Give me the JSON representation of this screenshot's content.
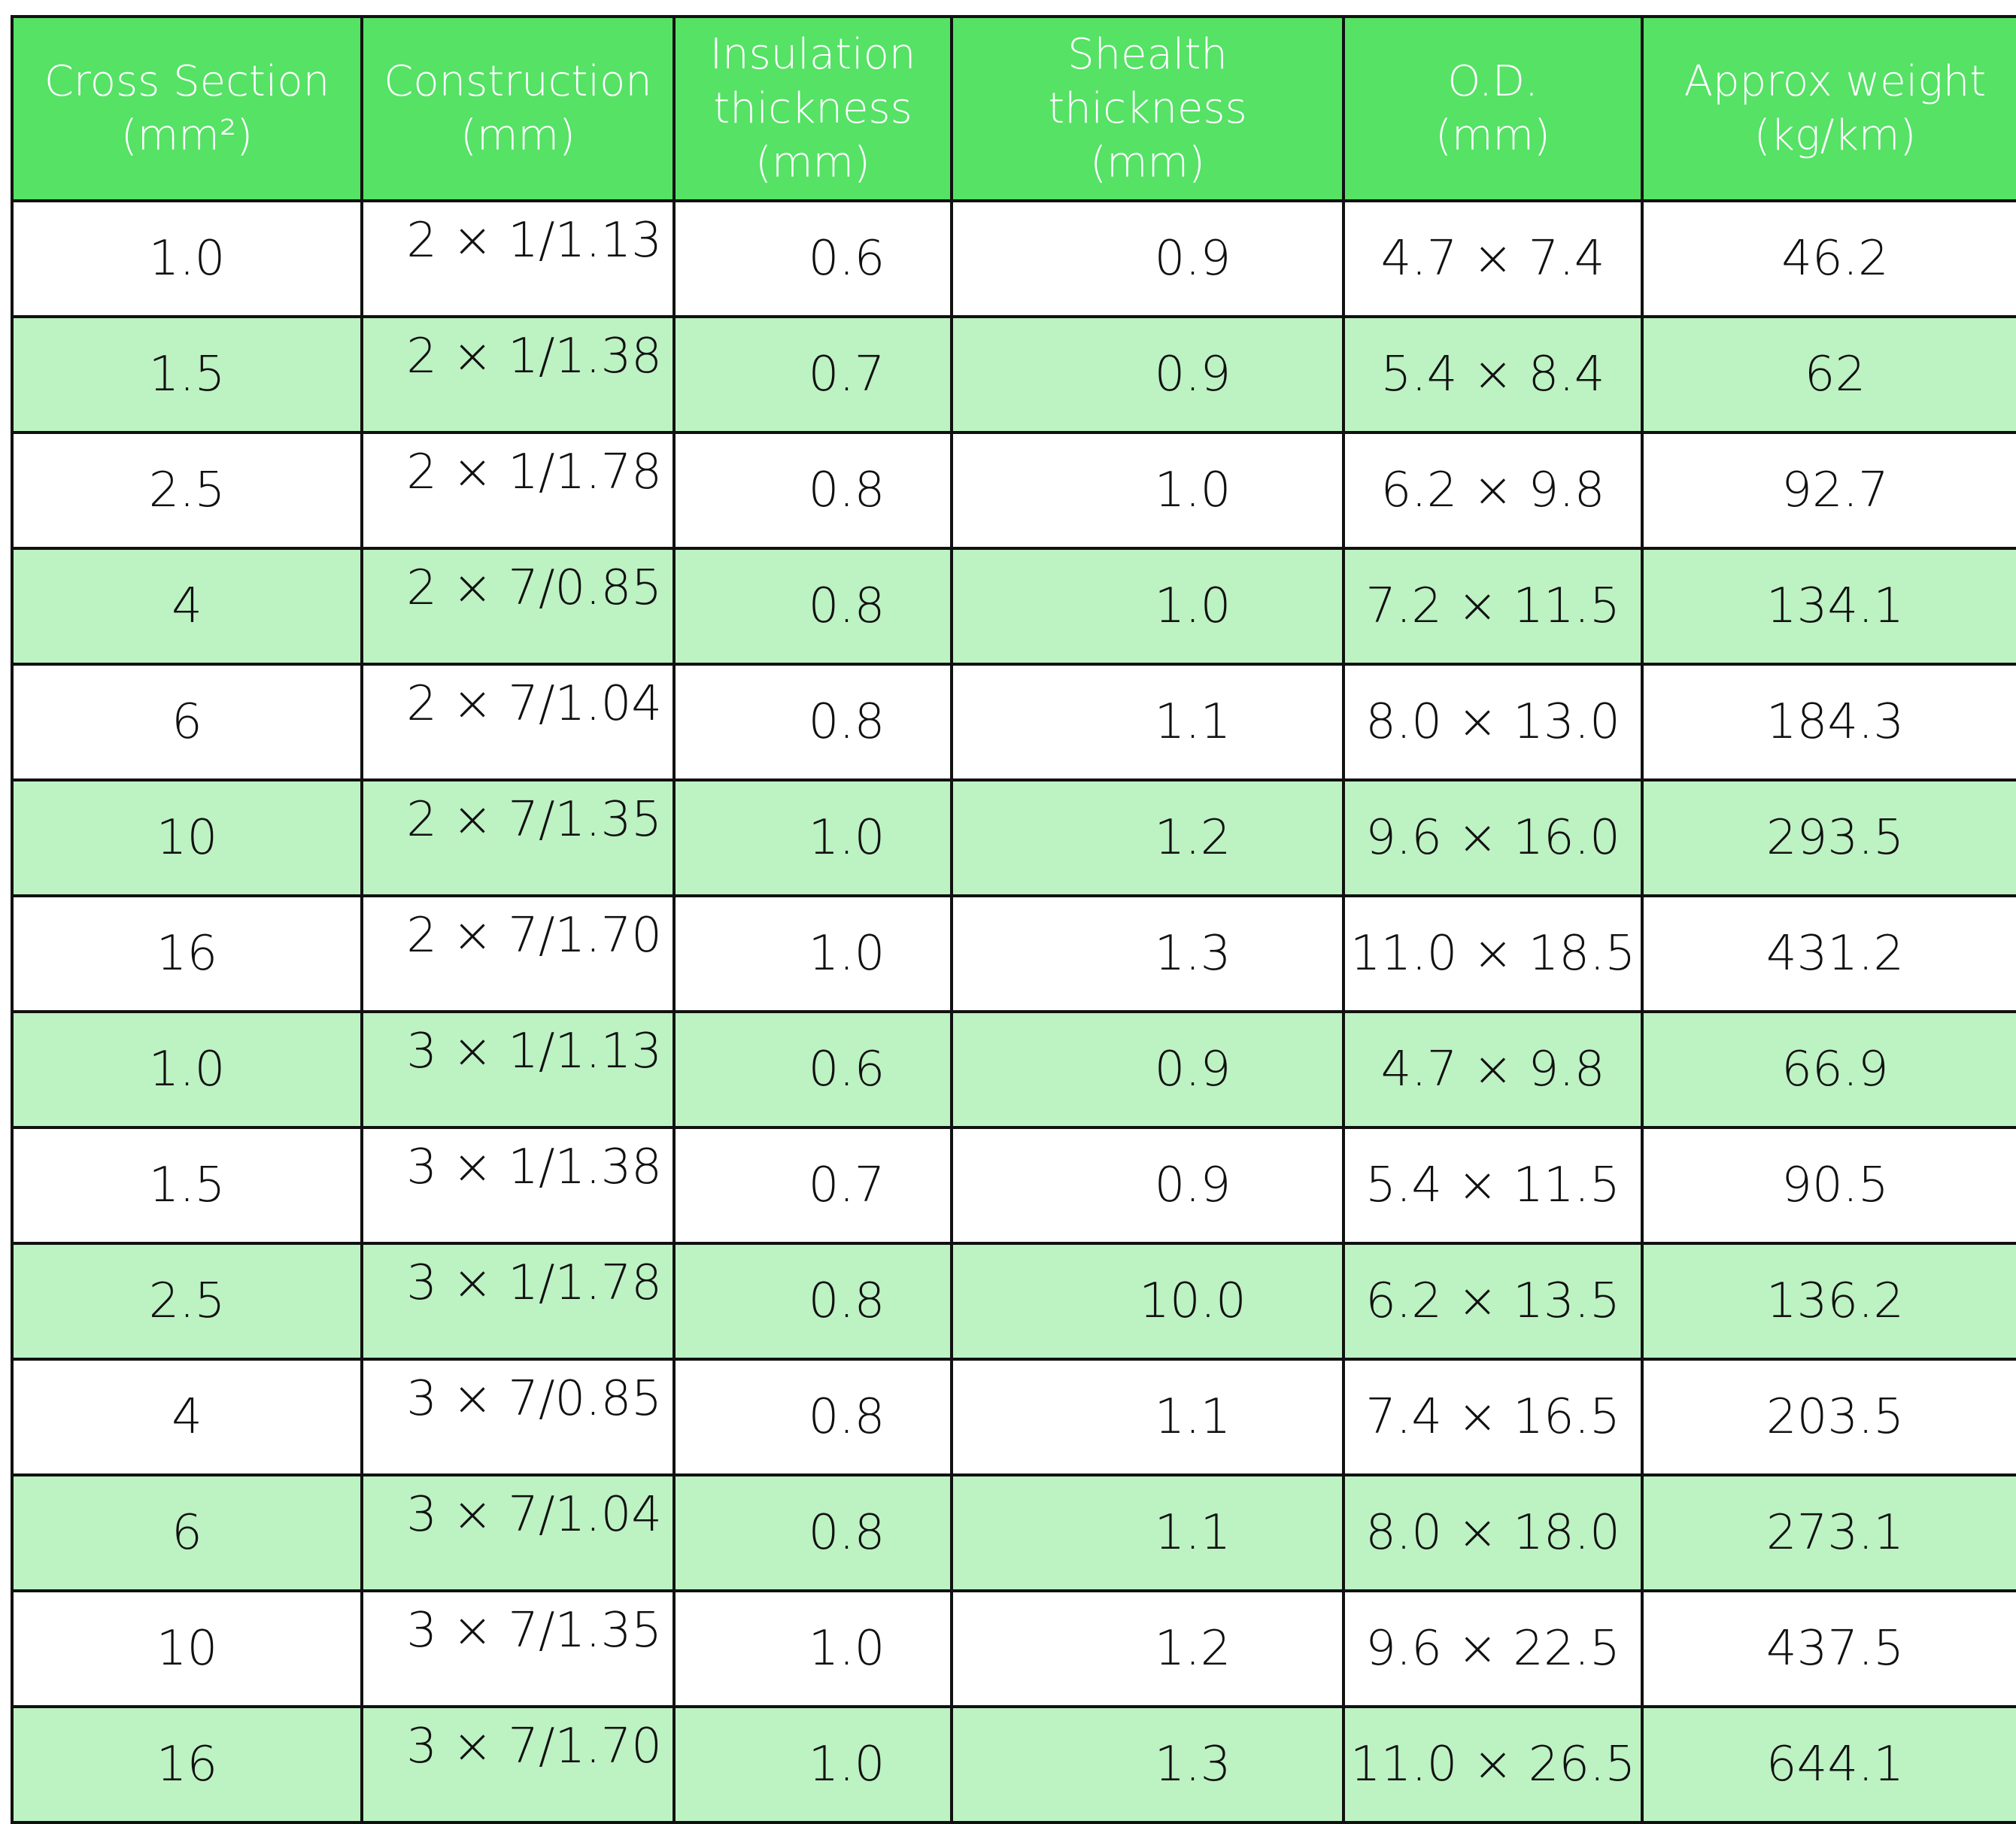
{
  "table": {
    "header": [
      [
        "Cross Section",
        "(mm²)"
      ],
      [
        "Construction",
        "(mm)"
      ],
      [
        "Insulation",
        "thickness",
        "(mm)"
      ],
      [
        "Shealth",
        "thickness",
        "(mm)"
      ],
      [
        "O.D.",
        "(mm)"
      ],
      [
        "Approx weight",
        "(kg/km)"
      ]
    ],
    "rows": [
      [
        "1.0",
        "2 × 1/1.13",
        "0.6",
        "0.9",
        "4.7 × 7.4",
        "46.2"
      ],
      [
        "1.5",
        "2 × 1/1.38",
        "0.7",
        "0.9",
        "5.4 × 8.4",
        "62"
      ],
      [
        "2.5",
        "2 × 1/1.78",
        "0.8",
        "1.0",
        "6.2 × 9.8",
        "92.7"
      ],
      [
        "4",
        "2 × 7/0.85",
        "0.8",
        "1.0",
        "7.2 × 11.5",
        "134.1"
      ],
      [
        "6",
        "2 × 7/1.04",
        "0.8",
        "1.1",
        "8.0 × 13.0",
        "184.3"
      ],
      [
        "10",
        "2 × 7/1.35",
        "1.0",
        "1.2",
        "9.6 × 16.0",
        "293.5"
      ],
      [
        "16",
        "2 × 7/1.70",
        "1.0",
        "1.3",
        "11.0 × 18.5",
        "431.2"
      ],
      [
        "1.0",
        "3 × 1/1.13",
        "0.6",
        "0.9",
        "4.7 × 9.8",
        "66.9"
      ],
      [
        "1.5",
        "3 × 1/1.38",
        "0.7",
        "0.9",
        "5.4 × 11.5",
        "90.5"
      ],
      [
        "2.5",
        "3 × 1/1.78",
        "0.8",
        "10.0",
        "6.2 × 13.5",
        "136.2"
      ],
      [
        "4",
        "3 × 7/0.85",
        "0.8",
        "1.1",
        "7.4 × 16.5",
        "203.5"
      ],
      [
        "6",
        "3 × 7/1.04",
        "0.8",
        "1.1",
        "8.0 × 18.0",
        "273.1"
      ],
      [
        "10",
        "3 × 7/1.35",
        "1.0",
        "1.2",
        "9.6 × 22.5",
        "437.5"
      ],
      [
        "16",
        "3 × 7/1.70",
        "1.0",
        "1.3",
        "11.0 × 26.5",
        "644.1"
      ]
    ]
  }
}
